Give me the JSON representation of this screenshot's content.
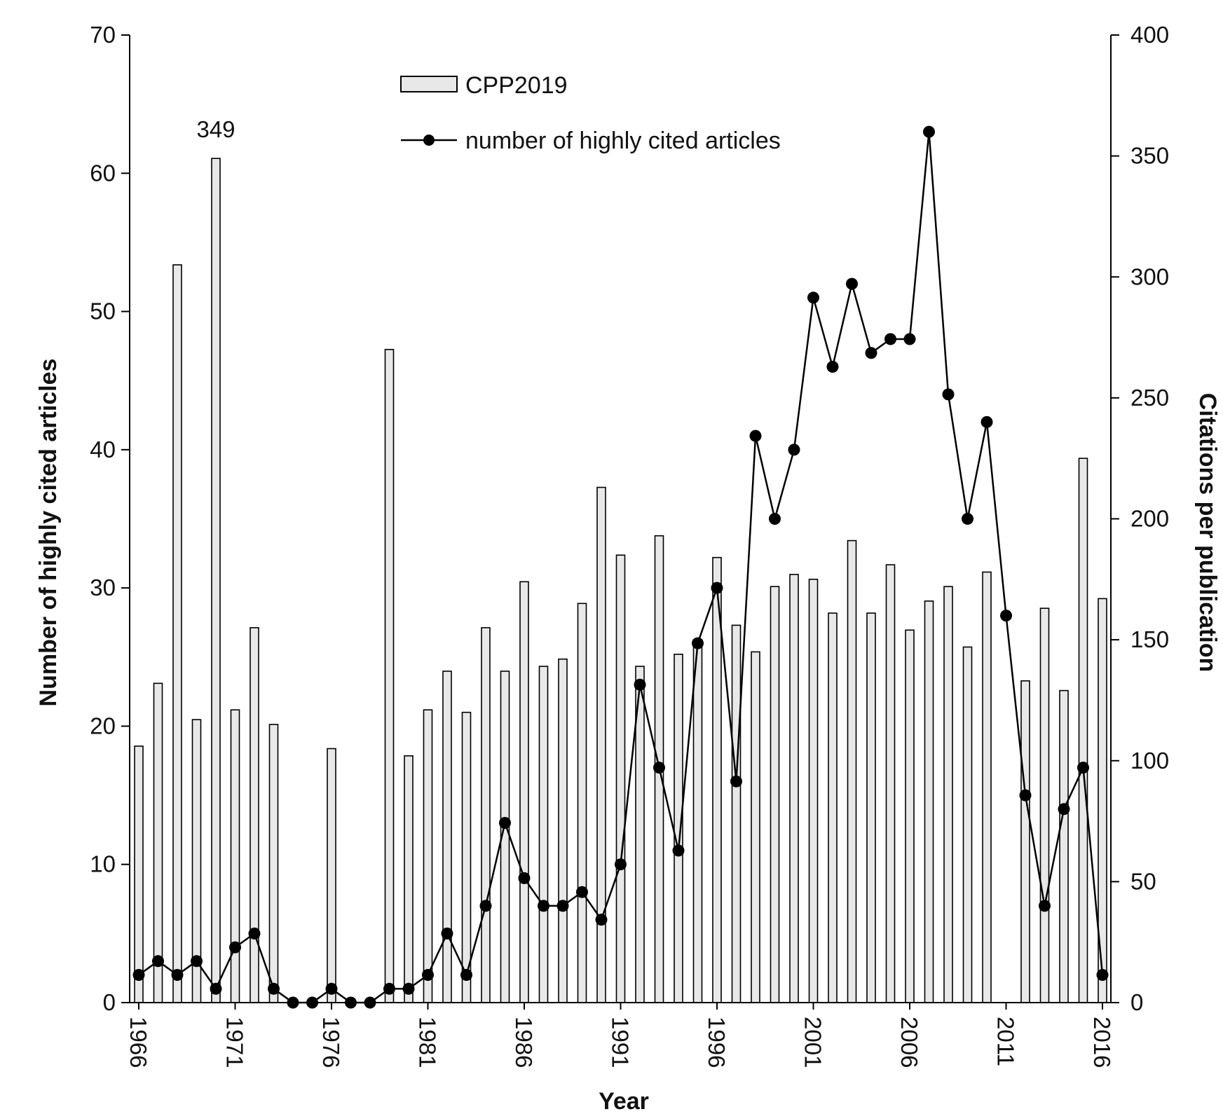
{
  "chart_data": {
    "type": "bar",
    "title": "",
    "xlabel": "Year",
    "ylabel_left": "Number of highly cited articles",
    "ylabel_right": "Citations per publication",
    "ylim_left": [
      0,
      70
    ],
    "ylim_right": [
      0,
      400
    ],
    "yticks_left": [
      "0",
      "10",
      "20",
      "30",
      "40",
      "50",
      "60",
      "70"
    ],
    "yticks_right": [
      "0",
      "50",
      "100",
      "150",
      "200",
      "250",
      "300",
      "350",
      "400"
    ],
    "xtick_labels": [
      "1966",
      "1971",
      "1976",
      "1981",
      "1986",
      "1991",
      "1996",
      "2001",
      "2006",
      "2011",
      "2016"
    ],
    "grid": false,
    "legend_position": "top-center",
    "x": [
      1966,
      1967,
      1968,
      1969,
      1970,
      1971,
      1972,
      1973,
      1974,
      1975,
      1976,
      1977,
      1978,
      1979,
      1980,
      1981,
      1982,
      1983,
      1984,
      1985,
      1986,
      1987,
      1988,
      1989,
      1990,
      1991,
      1992,
      1993,
      1994,
      1995,
      1996,
      1997,
      1998,
      1999,
      2000,
      2001,
      2002,
      2003,
      2004,
      2005,
      2006,
      2007,
      2008,
      2009,
      2010,
      2011,
      2012,
      2013,
      2014,
      2015,
      2016
    ],
    "series": [
      {
        "name": "CPP2019",
        "type": "bar",
        "axis": "right",
        "color": "#e8e8e8",
        "values": [
          106,
          132,
          305,
          117,
          349,
          121,
          155,
          115,
          0,
          0,
          105,
          0,
          0,
          270,
          102,
          121,
          137,
          120,
          155,
          137,
          174,
          139,
          142,
          165,
          213,
          185,
          139,
          193,
          144,
          150,
          184,
          156,
          145,
          172,
          177,
          175,
          161,
          191,
          161,
          181,
          154,
          166,
          172,
          147,
          178,
          0,
          133,
          163,
          129,
          225,
          167
        ]
      },
      {
        "name": "number of highly cited articles",
        "type": "line",
        "axis": "left",
        "color": "#000000",
        "values": [
          2,
          3,
          2,
          3,
          1,
          4,
          5,
          1,
          0,
          0,
          1,
          0,
          0,
          1,
          1,
          2,
          5,
          2,
          7,
          13,
          9,
          7,
          7,
          8,
          6,
          10,
          23,
          17,
          11,
          26,
          30,
          16,
          41,
          35,
          40,
          51,
          46,
          52,
          47,
          48,
          48,
          63,
          44,
          35,
          42,
          28,
          15,
          7,
          14,
          17,
          2
        ]
      }
    ],
    "annotations": [
      {
        "text": "349",
        "x": 1970
      }
    ]
  }
}
